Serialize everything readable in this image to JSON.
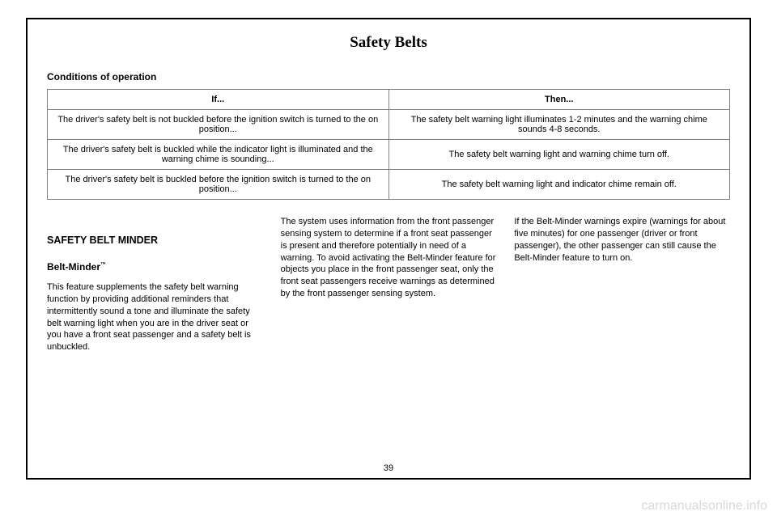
{
  "page": {
    "title": "Safety Belts",
    "number": "39"
  },
  "subheading": "Conditions of operation",
  "table": {
    "headers": {
      "if": "If...",
      "then": "Then..."
    },
    "rows": [
      {
        "if": "The driver's safety belt is not buckled before the ignition switch is turned to the on position...",
        "then": "The safety belt warning light illuminates 1-2 minutes and the warning chime sounds 4-8 seconds."
      },
      {
        "if": "The driver's safety belt is buckled while the indicator light is illuminated and the warning chime is sounding...",
        "then": "The safety belt warning light and warning chime turn off."
      },
      {
        "if": "The driver's safety belt is buckled before the ignition switch is turned to the on position...",
        "then": "The safety belt warning light and indicator chime remain off."
      }
    ]
  },
  "section": {
    "title": "SAFETY BELT MINDER",
    "subtitle": "Belt-Minder",
    "tm": "™",
    "col1_body": "This feature supplements the safety belt warning function by providing additional reminders that intermittently sound a tone and illuminate the safety belt warning light when you are in the driver seat or you have a front seat passenger and a safety belt is unbuckled.",
    "col2_body": "The system uses information from the front passenger sensing system to determine if a front seat passenger is present and therefore potentially in need of a warning. To avoid activating the Belt-Minder feature for objects you place in the front passenger seat, only the front seat passengers receive warnings as determined by the front passenger sensing system.",
    "col3_body": "If the Belt-Minder warnings expire (warnings for about five minutes) for one passenger (driver or front passenger), the other passenger can still cause the Belt-Minder feature to turn on."
  },
  "watermark": "carmanualsonline.info"
}
